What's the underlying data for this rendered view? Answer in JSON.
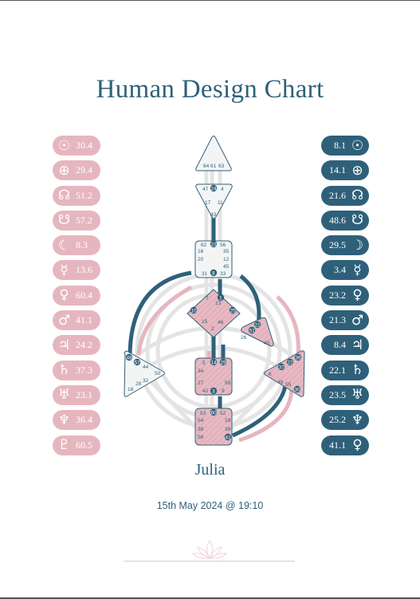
{
  "title": "Human Design Chart",
  "name": "Julia",
  "datetime": "15th May 2024 @ 19:10",
  "colors": {
    "design": "#e6b6bf",
    "personality": "#2f607a",
    "accent_text": "#2e617a"
  },
  "design_column": [
    {
      "planet": "sun",
      "glyph": "☉",
      "value": "30.4"
    },
    {
      "planet": "earth",
      "glyph": "⊕",
      "value": "29.4"
    },
    {
      "planet": "north-node",
      "glyph": "☊",
      "value": "51.2"
    },
    {
      "planet": "south-node",
      "glyph": "☋",
      "value": "57.2"
    },
    {
      "planet": "moon",
      "glyph": "☾",
      "value": "8.3"
    },
    {
      "planet": "mercury",
      "glyph": "☿",
      "value": "13.6"
    },
    {
      "planet": "venus",
      "glyph": "♀",
      "value": "60.4"
    },
    {
      "planet": "mars",
      "glyph": "♂",
      "value": "41.1"
    },
    {
      "planet": "jupiter",
      "glyph": "♃",
      "value": "24.2"
    },
    {
      "planet": "saturn",
      "glyph": "♄",
      "value": "37.3"
    },
    {
      "planet": "uranus",
      "glyph": "♅",
      "value": "23.1"
    },
    {
      "planet": "neptune",
      "glyph": "♆",
      "value": "36.4"
    },
    {
      "planet": "pluto",
      "glyph": "♇",
      "value": "60.5"
    }
  ],
  "personality_column": [
    {
      "planet": "sun",
      "glyph": "☉",
      "value": "8.1"
    },
    {
      "planet": "earth",
      "glyph": "⊕",
      "value": "14.1"
    },
    {
      "planet": "north-node",
      "glyph": "☊",
      "value": "21.6"
    },
    {
      "planet": "south-node",
      "glyph": "☋",
      "value": "48.6"
    },
    {
      "planet": "moon",
      "glyph": "☽",
      "value": "29.5"
    },
    {
      "planet": "mercury",
      "glyph": "☿",
      "value": "3.4"
    },
    {
      "planet": "venus",
      "glyph": "♀",
      "value": "23.2"
    },
    {
      "planet": "mars",
      "glyph": "♂",
      "value": "21.3"
    },
    {
      "planet": "jupiter",
      "glyph": "♃",
      "value": "8.4"
    },
    {
      "planet": "saturn",
      "glyph": "♄",
      "value": "22.1"
    },
    {
      "planet": "uranus",
      "glyph": "♅",
      "value": "23.5"
    },
    {
      "planet": "neptune",
      "glyph": "♆",
      "value": "25.2"
    },
    {
      "planet": "pluto",
      "glyph": "♀",
      "value": "41.1"
    }
  ],
  "centers": {
    "head": {
      "gates": [
        "64",
        "61",
        "63"
      ]
    },
    "ajna": {
      "gates": [
        "47",
        "24",
        "4",
        "17",
        "11",
        "43"
      ]
    },
    "throat": {
      "gates": [
        "62",
        "23",
        "56",
        "16",
        "35",
        "20",
        "12",
        "45",
        "31",
        "8",
        "33"
      ]
    },
    "g": {
      "gates": [
        "1",
        "13",
        "7",
        "25",
        "10",
        "15",
        "46",
        "2"
      ]
    },
    "heart": {
      "gates": [
        "21",
        "51",
        "26",
        "40"
      ]
    },
    "spleen": {
      "gates": [
        "48",
        "57",
        "44",
        "50",
        "32",
        "18",
        "28"
      ]
    },
    "sacral": {
      "gates": [
        "5",
        "14",
        "29",
        "34",
        "27",
        "59",
        "42",
        "3",
        "9"
      ]
    },
    "solar_plexus": {
      "gates": [
        "36",
        "22",
        "37",
        "6",
        "49",
        "55",
        "30"
      ]
    },
    "root": {
      "gates": [
        "53",
        "60",
        "52",
        "54",
        "19",
        "38",
        "39",
        "58",
        "41"
      ]
    }
  }
}
